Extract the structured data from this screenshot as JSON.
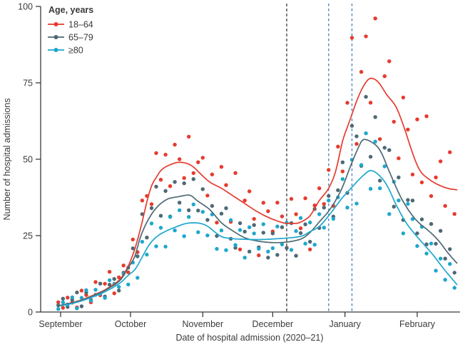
{
  "figure": {
    "background": "#ffffff",
    "text_color": "#3b3b3b",
    "axis_color": "#3b3b3b"
  },
  "chart_data": {
    "type": "scatter",
    "title": "",
    "xlabel": "Date of hospital admission (2020–21)",
    "ylabel": "Number of hospital admissions",
    "ylim": [
      0,
      100
    ],
    "yticks": [
      0,
      25,
      50,
      75,
      100
    ],
    "grid": "off",
    "x_axis": {
      "unit": "days since Sep 1 2020",
      "month_ticks": [
        {
          "label": "September",
          "day": 0
        },
        {
          "label": "October",
          "day": 30
        },
        {
          "label": "November",
          "day": 61
        },
        {
          "label": "December",
          "day": 91
        },
        {
          "label": "January",
          "day": 122
        },
        {
          "label": "February",
          "day": 153
        }
      ],
      "day_range": [
        -2,
        170
      ]
    },
    "legend": {
      "title": "Age, years",
      "position": "top-left"
    },
    "reference_lines": [
      {
        "day": 97,
        "color": "#3b3b3b",
        "style": "dashed",
        "dash": "4 3"
      },
      {
        "day": 115,
        "color": "#3d7dbb",
        "style": "dashed",
        "dash": "3.5 3.5"
      },
      {
        "day": 125,
        "color": "#3d7dbb",
        "style": "dashed",
        "dash": "3.5 3.5"
      }
    ],
    "series": [
      {
        "name": "18–64",
        "color": "#e63b2e",
        "trend": [
          [
            0,
            2.2
          ],
          [
            7,
            3.5
          ],
          [
            14,
            5.5
          ],
          [
            20,
            7.7
          ],
          [
            26,
            11.2
          ],
          [
            29,
            15
          ],
          [
            32,
            21
          ],
          [
            35,
            29.5
          ],
          [
            37,
            36
          ],
          [
            39,
            41.3
          ],
          [
            41,
            44
          ],
          [
            43,
            46.3
          ],
          [
            47,
            48.2
          ],
          [
            51,
            49
          ],
          [
            56,
            48
          ],
          [
            61,
            44.5
          ],
          [
            64,
            42.5
          ],
          [
            69,
            40.5
          ],
          [
            74,
            38
          ],
          [
            79,
            35.5
          ],
          [
            84,
            33
          ],
          [
            89,
            31
          ],
          [
            93,
            29.8
          ],
          [
            97,
            29
          ],
          [
            101,
            29
          ],
          [
            104,
            29.8
          ],
          [
            107,
            31.5
          ],
          [
            111,
            36.5
          ],
          [
            115,
            40.5
          ],
          [
            118,
            46
          ],
          [
            121,
            56
          ],
          [
            124,
            62.5
          ],
          [
            127,
            69
          ],
          [
            130,
            74
          ],
          [
            133,
            76.5
          ],
          [
            136,
            75.5
          ],
          [
            140,
            71
          ],
          [
            144,
            67
          ],
          [
            148,
            59
          ],
          [
            151,
            52
          ],
          [
            154,
            46.5
          ],
          [
            158,
            43.5
          ],
          [
            163,
            41.3
          ],
          [
            167,
            40.3
          ],
          [
            170,
            40
          ]
        ],
        "points_start_day": -1,
        "points_step_days": 2,
        "point_offsets": [
          1,
          -1,
          2,
          0,
          -2,
          3,
          1,
          -2,
          4,
          -1,
          2,
          5,
          -3,
          1,
          3,
          -2,
          5,
          -4,
          7,
          2,
          -6,
          8,
          -3,
          4,
          -7,
          6,
          1,
          -5,
          9,
          -2,
          3,
          6,
          -5,
          3,
          -12,
          7,
          2,
          -9,
          8,
          -16,
          1,
          5,
          -3,
          -14,
          4,
          2,
          -4,
          6,
          2,
          -8,
          8,
          3,
          -2,
          7,
          -11,
          1,
          4,
          -3,
          6,
          -9,
          5,
          -10,
          8,
          25,
          -14,
          6,
          15,
          -8,
          20,
          -18,
          5,
          12,
          -6,
          -15,
          9,
          3,
          -7,
          15,
          -3,
          20,
          -5,
          2,
          8,
          -6,
          12,
          -8
        ]
      },
      {
        "name": "65–79",
        "color": "#4e6974",
        "trend": [
          [
            0,
            2.2
          ],
          [
            7,
            3.4
          ],
          [
            14,
            5.3
          ],
          [
            20,
            7.5
          ],
          [
            26,
            10.8
          ],
          [
            29,
            14.5
          ],
          [
            32,
            18.5
          ],
          [
            34,
            24
          ],
          [
            39,
            32
          ],
          [
            45,
            36.6
          ],
          [
            51,
            37.8
          ],
          [
            55,
            38.3
          ],
          [
            59,
            36.2
          ],
          [
            64,
            33.5
          ],
          [
            69,
            29.2
          ],
          [
            74,
            26.5
          ],
          [
            79,
            24.3
          ],
          [
            84,
            23.3
          ],
          [
            89,
            22.8
          ],
          [
            93,
            22.7
          ],
          [
            97,
            22.9
          ],
          [
            101,
            23.4
          ],
          [
            104,
            24.2
          ],
          [
            107,
            26
          ],
          [
            111,
            29.5
          ],
          [
            115,
            33
          ],
          [
            118,
            36.5
          ],
          [
            121,
            41
          ],
          [
            124,
            47
          ],
          [
            127,
            52.5
          ],
          [
            130,
            56.5
          ],
          [
            133,
            55.8
          ],
          [
            137,
            53
          ],
          [
            141,
            46
          ],
          [
            146,
            37.5
          ],
          [
            151,
            31.5
          ],
          [
            154,
            29
          ],
          [
            158,
            26.5
          ],
          [
            162,
            23.5
          ],
          [
            166,
            19.5
          ],
          [
            170,
            16
          ]
        ],
        "points_start_day": -1,
        "points_step_days": 2,
        "point_offsets": [
          0,
          2,
          -1,
          1,
          3,
          -2,
          2,
          -1,
          0,
          3,
          -2,
          1,
          2,
          -3,
          1,
          0,
          4,
          -3,
          6,
          -5,
          2,
          7,
          -4,
          3,
          -6,
          5,
          -2,
          4,
          -5,
          6,
          -3,
          5,
          -4,
          2,
          -6,
          3,
          6,
          -3,
          -5,
          4,
          2,
          -4,
          5,
          -2,
          3,
          -5,
          3,
          -4,
          5,
          -2,
          6,
          -5,
          2,
          4,
          -3,
          6,
          -2,
          3,
          5,
          -4,
          2,
          8,
          -6,
          12,
          5,
          -8,
          14,
          -5,
          9,
          -10,
          4,
          7,
          -8,
          5,
          -6,
          3,
          5,
          -4,
          2,
          -5,
          3,
          -2,
          4,
          -3,
          2,
          -4
        ]
      },
      {
        "name": "≥80",
        "color": "#1ea7cd",
        "trend": [
          [
            0,
            2
          ],
          [
            7,
            3.2
          ],
          [
            14,
            5
          ],
          [
            20,
            7
          ],
          [
            26,
            9.8
          ],
          [
            29,
            12
          ],
          [
            32,
            14
          ],
          [
            35,
            18
          ],
          [
            38,
            22
          ],
          [
            41,
            24.5
          ],
          [
            44,
            26
          ],
          [
            50,
            28
          ],
          [
            54,
            29
          ],
          [
            57,
            29.2
          ],
          [
            62,
            28.5
          ],
          [
            69,
            24.7
          ],
          [
            74,
            24
          ],
          [
            79,
            23.8
          ],
          [
            84,
            23.7
          ],
          [
            89,
            23.8
          ],
          [
            93,
            24
          ],
          [
            97,
            24.2
          ],
          [
            101,
            24.5
          ],
          [
            104,
            25
          ],
          [
            107,
            26.3
          ],
          [
            111,
            28
          ],
          [
            115,
            31.5
          ],
          [
            118,
            34.5
          ],
          [
            121,
            37.5
          ],
          [
            124,
            40
          ],
          [
            127,
            42.5
          ],
          [
            130,
            44.8
          ],
          [
            133,
            46.3
          ],
          [
            136,
            45.2
          ],
          [
            140,
            41.5
          ],
          [
            144,
            35
          ],
          [
            148,
            29.5
          ],
          [
            152,
            25.5
          ],
          [
            156,
            22
          ],
          [
            160,
            18.5
          ],
          [
            164,
            14.5
          ],
          [
            170,
            9
          ]
        ],
        "points_start_day": -1,
        "points_step_days": 2,
        "point_offsets": [
          -1,
          1,
          0,
          2,
          -2,
          1,
          3,
          -1,
          2,
          0,
          -2,
          3,
          1,
          -1,
          2,
          -3,
          3,
          -4,
          5,
          -2,
          6,
          -3,
          2,
          -5,
          4,
          -1,
          5,
          -4,
          2,
          6,
          -3,
          4,
          -3,
          5,
          -5,
          2,
          -4,
          6,
          -2,
          3,
          -6,
          4,
          2,
          -3,
          5,
          -4,
          -3,
          4,
          -2,
          5,
          -4,
          2,
          6,
          -3,
          3,
          -5,
          4,
          -2,
          5,
          -3,
          2,
          6,
          -5,
          9,
          -7,
          4,
          13,
          -6,
          10,
          -4,
          5,
          -8,
          6,
          3,
          -5,
          7,
          4,
          -3,
          5,
          -2,
          3,
          -4,
          2,
          -3,
          4,
          -2
        ]
      }
    ]
  }
}
